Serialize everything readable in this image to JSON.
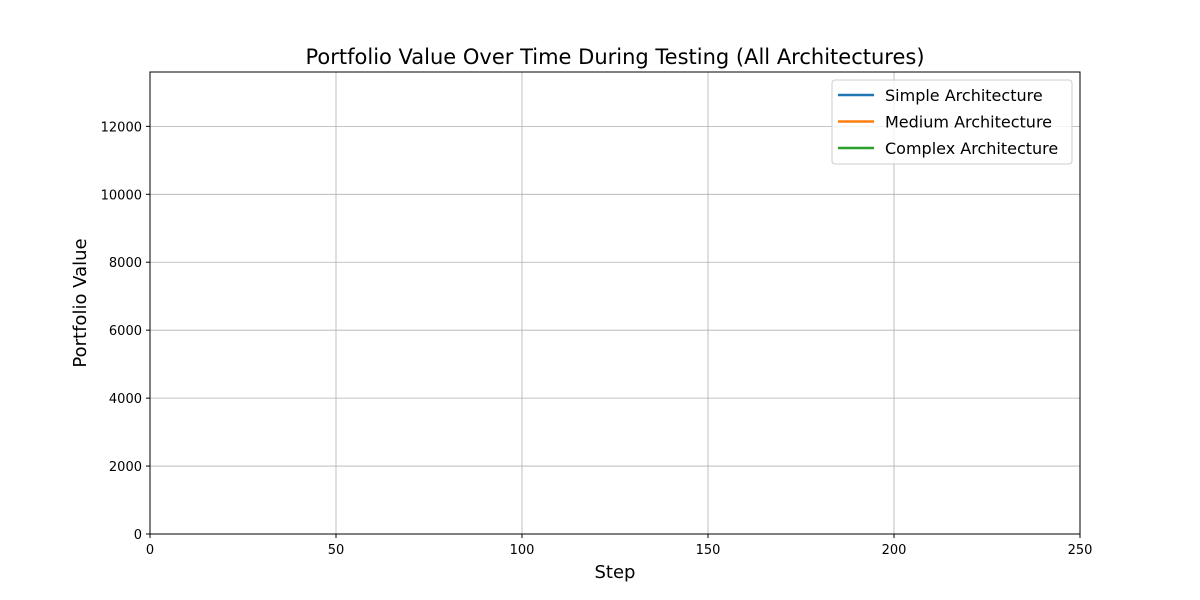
{
  "chart_data": {
    "type": "line",
    "title": "Portfolio Value Over Time During Testing (All Architectures)",
    "xlabel": "Step",
    "ylabel": "Portfolio Value",
    "xlim": [
      0,
      250
    ],
    "ylim": [
      0,
      13600
    ],
    "x_ticks": [
      0,
      50,
      100,
      150,
      200,
      250
    ],
    "y_ticks": [
      0,
      2000,
      4000,
      6000,
      8000,
      10000,
      12000
    ],
    "grid": true,
    "legend_position": "top-right",
    "series": [
      {
        "name": "Simple Architecture",
        "color": "#1f77b4",
        "x": [],
        "y": []
      },
      {
        "name": "Medium Architecture",
        "color": "#ff7f0e",
        "x": [],
        "y": []
      },
      {
        "name": "Complex Architecture",
        "color": "#2ca02c",
        "x": [],
        "y": []
      }
    ]
  }
}
